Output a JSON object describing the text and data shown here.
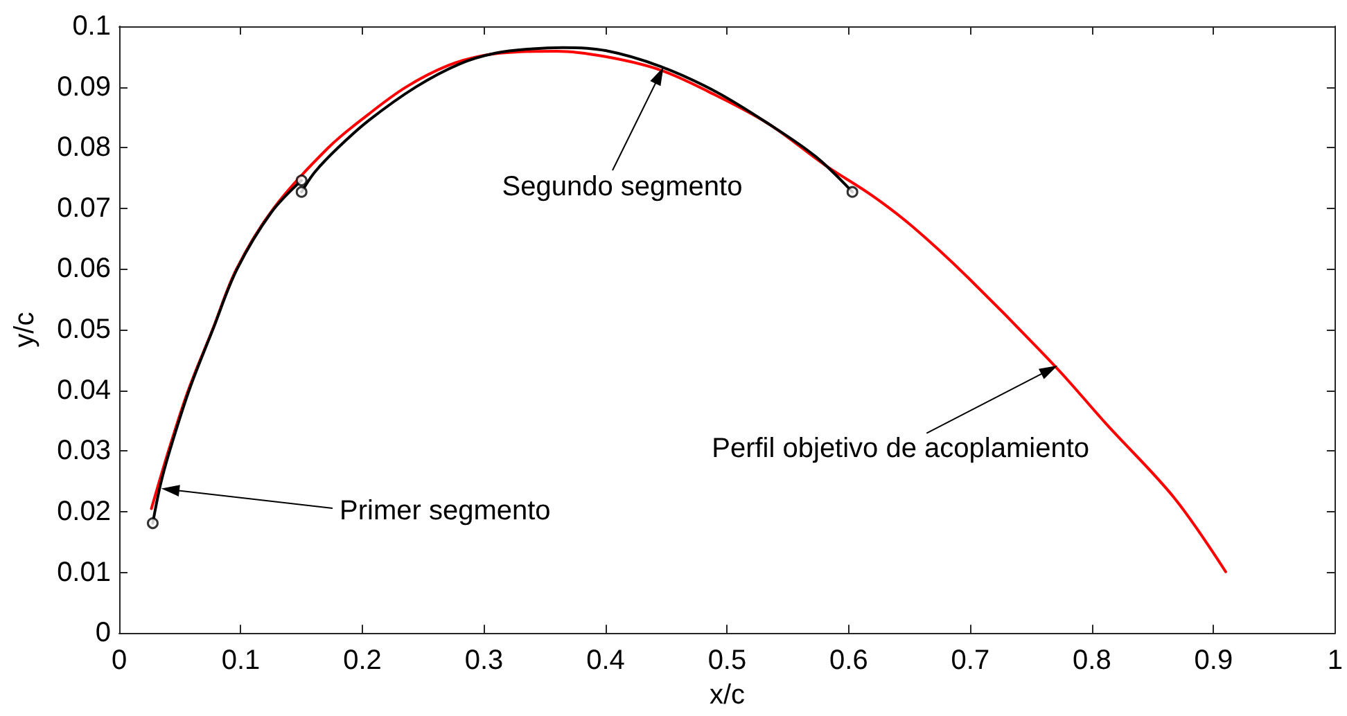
{
  "chart_data": {
    "type": "line",
    "xlabel": "x/c",
    "ylabel": "y/c",
    "xlim": [
      0,
      1
    ],
    "xticks": [
      0,
      0.1,
      0.2,
      0.3,
      0.4,
      0.5,
      0.6,
      0.7,
      0.8,
      0.9,
      1
    ],
    "ylim": [
      0,
      0.1
    ],
    "yticks": [
      0,
      0.01,
      0.02,
      0.03,
      0.04,
      0.05,
      0.06,
      0.07,
      0.08,
      0.09,
      0.1
    ],
    "grid": false,
    "marker": "none",
    "series": [
      {
        "color": "#ff0000",
        "x": [
          0.0265,
          0.0405,
          0.0568,
          0.0768,
          0.0965,
          0.127,
          0.172,
          0.205,
          0.236,
          0.27,
          0.3,
          0.33,
          0.36,
          0.4,
          0.445,
          0.49,
          0.535,
          0.58,
          0.62,
          0.653,
          0.698,
          0.77,
          0.8116,
          0.868,
          0.91
        ],
        "values": [
          0.0205,
          0.03,
          0.04,
          0.05,
          0.06,
          0.07,
          0.08,
          0.0855,
          0.09,
          0.0935,
          0.0952,
          0.0958,
          0.0959,
          0.095,
          0.0928,
          0.0887,
          0.0838,
          0.0772,
          0.072,
          0.0669,
          0.0586,
          0.0439,
          0.0345,
          0.0222,
          0.0101
        ]
      },
      {
        "color": "#000000",
        "x": [
          0.0276,
          0.034,
          0.0415,
          0.0575,
          0.077,
          0.097,
          0.125,
          0.15
        ],
        "values": [
          0.0181,
          0.0245,
          0.03,
          0.04,
          0.05,
          0.06,
          0.0693,
          0.0746
        ]
      },
      {
        "color": "#000000",
        "x": [
          0.15,
          0.161,
          0.18,
          0.206,
          0.244,
          0.28,
          0.31,
          0.34,
          0.365,
          0.4,
          0.445,
          0.49,
          0.535,
          0.573,
          0.603
        ],
        "values": [
          0.0727,
          0.076,
          0.08,
          0.0846,
          0.09,
          0.0938,
          0.0956,
          0.0963,
          0.0965,
          0.096,
          0.0934,
          0.0893,
          0.0838,
          0.0785,
          0.0727
        ]
      },
      {
        "type": "scatter",
        "marker": "circle",
        "color": "#000000",
        "x": [
          0.0276,
          0.15,
          0.15,
          0.603
        ],
        "values": [
          0.0181,
          0.0746,
          0.0727,
          0.0727
        ]
      }
    ],
    "annotations": [
      "Primer segmento",
      "Segundo segmento",
      {
        "text": "Perfil objetivo de acoplamiento",
        "x": 0.77,
        "y": 0.0439
      }
    ]
  }
}
